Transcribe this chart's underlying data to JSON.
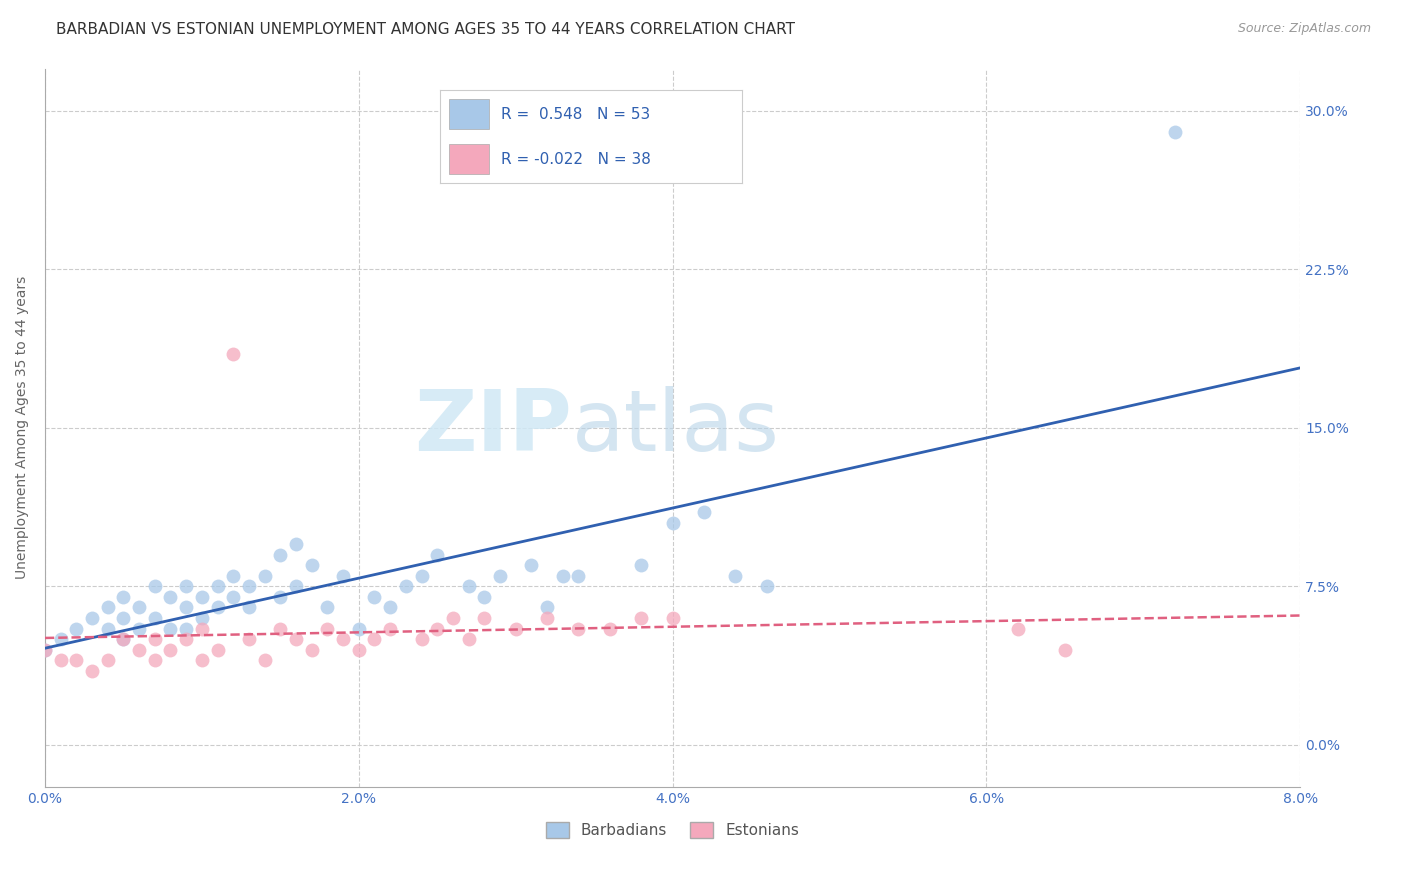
{
  "title": "BARBADIAN VS ESTONIAN UNEMPLOYMENT AMONG AGES 35 TO 44 YEARS CORRELATION CHART",
  "source": "Source: ZipAtlas.com",
  "ylabel": "Unemployment Among Ages 35 to 44 years",
  "xlim": [
    0.0,
    0.08
  ],
  "ylim": [
    -0.02,
    0.32
  ],
  "xticks": [
    0.0,
    0.02,
    0.04,
    0.06,
    0.08
  ],
  "xtick_labels": [
    "0.0%",
    "2.0%",
    "4.0%",
    "6.0%",
    "8.0%"
  ],
  "yticks": [
    0.0,
    0.075,
    0.15,
    0.225,
    0.3
  ],
  "ytick_labels": [
    "0.0%",
    "7.5%",
    "15.0%",
    "22.5%",
    "30.0%"
  ],
  "barbadian_color": "#A8C8E8",
  "estonian_color": "#F4A8BC",
  "barbadian_line_color": "#3060B0",
  "estonian_line_color": "#E06080",
  "barbadian_R": 0.548,
  "barbadian_N": 53,
  "estonian_R": -0.022,
  "estonian_N": 38,
  "legend_label_barbadian": "Barbadians",
  "legend_label_estonian": "Estonians",
  "barbadian_x": [
    0.0,
    0.001,
    0.002,
    0.003,
    0.004,
    0.004,
    0.005,
    0.005,
    0.005,
    0.006,
    0.006,
    0.007,
    0.007,
    0.008,
    0.008,
    0.009,
    0.009,
    0.009,
    0.01,
    0.01,
    0.011,
    0.011,
    0.012,
    0.012,
    0.013,
    0.013,
    0.014,
    0.015,
    0.015,
    0.016,
    0.016,
    0.017,
    0.018,
    0.019,
    0.02,
    0.021,
    0.022,
    0.023,
    0.024,
    0.025,
    0.027,
    0.028,
    0.029,
    0.031,
    0.032,
    0.033,
    0.034,
    0.038,
    0.04,
    0.042,
    0.044,
    0.046,
    0.072
  ],
  "barbadian_y": [
    0.045,
    0.05,
    0.055,
    0.06,
    0.055,
    0.065,
    0.05,
    0.06,
    0.07,
    0.055,
    0.065,
    0.06,
    0.075,
    0.055,
    0.07,
    0.055,
    0.065,
    0.075,
    0.06,
    0.07,
    0.065,
    0.075,
    0.07,
    0.08,
    0.065,
    0.075,
    0.08,
    0.07,
    0.09,
    0.075,
    0.095,
    0.085,
    0.065,
    0.08,
    0.055,
    0.07,
    0.065,
    0.075,
    0.08,
    0.09,
    0.075,
    0.07,
    0.08,
    0.085,
    0.065,
    0.08,
    0.08,
    0.085,
    0.105,
    0.11,
    0.08,
    0.075,
    0.29
  ],
  "estonian_x": [
    0.0,
    0.001,
    0.002,
    0.003,
    0.004,
    0.005,
    0.006,
    0.007,
    0.007,
    0.008,
    0.009,
    0.01,
    0.01,
    0.011,
    0.012,
    0.013,
    0.014,
    0.015,
    0.016,
    0.017,
    0.018,
    0.019,
    0.02,
    0.021,
    0.022,
    0.024,
    0.025,
    0.026,
    0.027,
    0.028,
    0.03,
    0.032,
    0.034,
    0.036,
    0.038,
    0.04,
    0.062,
    0.065
  ],
  "estonian_y": [
    0.045,
    0.04,
    0.04,
    0.035,
    0.04,
    0.05,
    0.045,
    0.05,
    0.04,
    0.045,
    0.05,
    0.04,
    0.055,
    0.045,
    0.185,
    0.05,
    0.04,
    0.055,
    0.05,
    0.045,
    0.055,
    0.05,
    0.045,
    0.05,
    0.055,
    0.05,
    0.055,
    0.06,
    0.05,
    0.06,
    0.055,
    0.06,
    0.055,
    0.055,
    0.06,
    0.06,
    0.055,
    0.045
  ],
  "watermark_zip": "ZIP",
  "watermark_atlas": "atlas",
  "grid_color": "#CCCCCC",
  "background_color": "#FFFFFF",
  "title_fontsize": 11,
  "axis_label_fontsize": 10,
  "tick_label_fontsize": 10,
  "source_fontsize": 9
}
